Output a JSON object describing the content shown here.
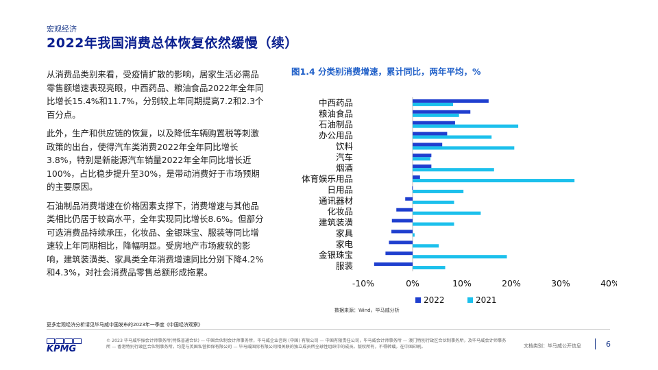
{
  "header": {
    "section": "宏观经济",
    "title": "2022年我国消费总体恢复依然缓慢（续）"
  },
  "body": {
    "paragraphs": [
      "从消费品类别来看，受疫情扩散的影响，居家生活必需品零售额增速表现亮眼，中西药品、粮油食品2022年全年同比增长15.4%和11.7%，分别较上年同期提高7.2和2.3个百分点。",
      "此外，生产和供应链的恢复，以及降低车辆购置税等刺激政策的出台，使得汽车类消费2022年全年同比增长3.8%，特别是新能源汽车销量2022年全年同比增长近100%，占比稳步提升至30%，是带动消费好于市场预期的主要原因。",
      "石油制品消费增速在价格因素支撑下，消费增速与其他品类相比仍居于较高水平，全年实现同比增长8.6%。但部分可选消费品持续承压，化妆品、金银珠宝、服装等同比增速较上年同期相比，降幅明显。受房地产市场疲软的影响，建筑装潢类、家具类全年消费增速同比分别下降4.2%和4.3%，对社会消费品零售总额形成拖累。"
    ]
  },
  "chart_title": "图1.4 分类别消费增速，累计同比，两年平均，%",
  "chart_data": {
    "type": "bar",
    "orientation": "horizontal",
    "categories": [
      "中西药品",
      "粮油食品",
      "石油制品",
      "办公用品",
      "饮料",
      "汽车",
      "烟酒",
      "体育娱乐用品",
      "日用品",
      "通讯器材",
      "化妆品",
      "建筑装潢",
      "家具",
      "家电",
      "金银珠宝",
      "服装"
    ],
    "series": [
      {
        "name": "2022",
        "color": "#1f3fcf",
        "values": [
          15.4,
          11.7,
          8.6,
          7.0,
          6.0,
          3.8,
          3.8,
          1.5,
          -0.1,
          -1.5,
          -3.3,
          -4.2,
          -4.3,
          -4.8,
          -5.5,
          -7.8
        ]
      },
      {
        "name": "2021",
        "color": "#1cc0ec",
        "values": [
          8.2,
          9.4,
          21.4,
          16.0,
          20.6,
          3.6,
          16.5,
          32.8,
          10.3,
          8.4,
          13.8,
          8.4,
          0.4,
          5.3,
          19.1,
          6.6
        ]
      }
    ],
    "xlim": [
      -10,
      40
    ],
    "xticks": [
      -10,
      0,
      10,
      20,
      30,
      40
    ],
    "xtick_labels": [
      "-10%",
      "0%",
      "10%",
      "20%",
      "30%",
      "40%"
    ],
    "legend_position": "bottom"
  },
  "source": "数据来源：Wind，毕马威分析",
  "more_note": "更多宏观经济分析请见毕马威中国发布的2023年一季度《中国经济观察》",
  "footer": {
    "logo_text": "KPMG",
    "copyright": "© 2023 毕马威华振会计师事务所(特殊普通合伙) — 中国合伙制会计师事务所，毕马威企业咨询 (中国) 有限公司 — 中国有限责任公司，毕马威会计师事务所 — 澳门特别行政区合伙制事务所，及毕马威会计师事务所 — 香港特别行政区合伙制事务所，均是与英国私营担保有限公司 — 毕马威国际有限公司相关联的独立成员所全球性组织中的成员。版权所有，不得转载。在中国印刷。",
    "doc_class": "文档类别：毕马威公开信息",
    "page_number": "6"
  }
}
